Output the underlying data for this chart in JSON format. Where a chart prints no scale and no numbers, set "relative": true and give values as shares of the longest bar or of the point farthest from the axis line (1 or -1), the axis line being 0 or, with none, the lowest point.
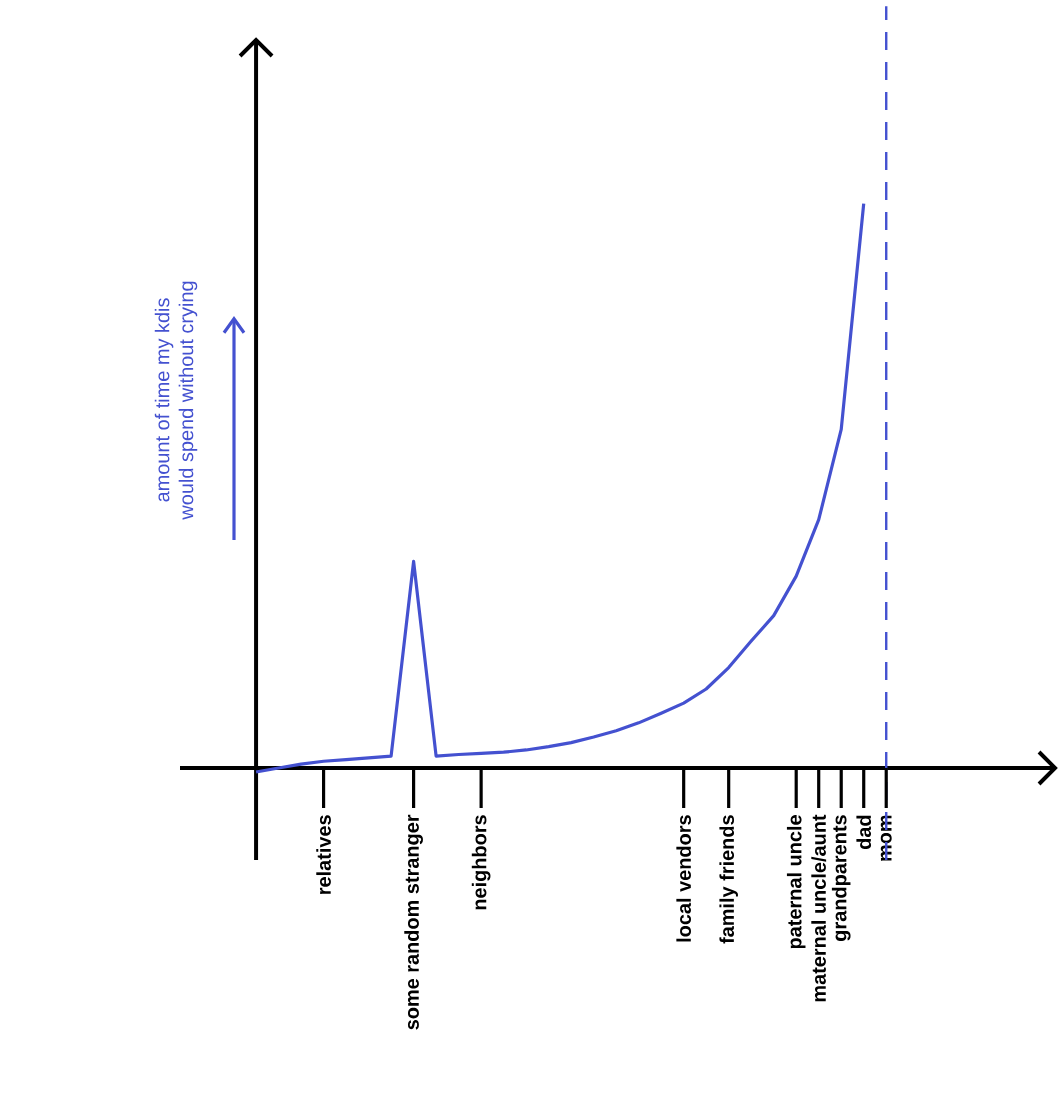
{
  "chart_data": {
    "type": "line",
    "relative": true,
    "ylabel": "amount of time my kdis\nwould spend without crying",
    "color": "#4451d0",
    "marker": "none",
    "line_style": "solid",
    "categories": [
      null,
      null,
      null,
      "relatives",
      null,
      null,
      null,
      "some random stranger",
      null,
      null,
      "neighbors",
      null,
      null,
      null,
      null,
      null,
      null,
      null,
      null,
      "local vendors",
      null,
      "family friends",
      null,
      null,
      "paternal uncle",
      "maternal uncle/aunt",
      "grandparents",
      "dad",
      "mom"
    ],
    "values": [
      -0.007,
      0,
      0.007,
      0.012,
      0.015,
      0.018,
      0.021,
      0.366,
      0.021,
      0.024,
      0.026,
      0.028,
      0.032,
      0.038,
      0.045,
      0.055,
      0.066,
      0.08,
      0.097,
      0.115,
      0.14,
      0.178,
      0.225,
      0.27,
      0.34,
      0.44,
      0.6,
      1,
      null
    ],
    "ref_lines": [
      {
        "axis": "x",
        "value": "mom",
        "color": "#4451d0",
        "line_style": "dashed"
      }
    ]
  }
}
